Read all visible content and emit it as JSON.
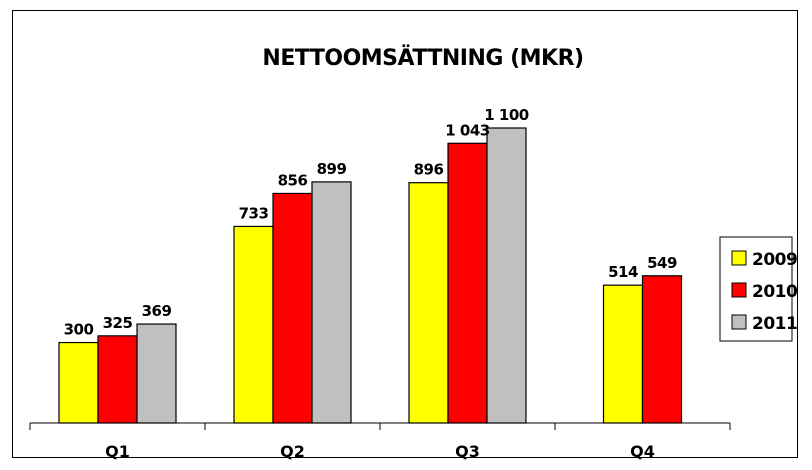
{
  "chart_data": {
    "type": "bar",
    "title": "NETTOOMSÄTTNING (MKR)",
    "categories": [
      "Q1",
      "Q2",
      "Q3",
      "Q4"
    ],
    "series": [
      {
        "name": "2009",
        "color": "#FFFF00",
        "values": [
          300,
          733,
          896,
          514
        ],
        "labels": [
          "300",
          "733",
          "896",
          "514"
        ]
      },
      {
        "name": "2010",
        "color": "#FF0000",
        "values": [
          325,
          856,
          1043,
          549
        ],
        "labels": [
          "325",
          "856",
          "1 043",
          "549"
        ]
      },
      {
        "name": "2011",
        "color": "#C0C0C0",
        "values": [
          369,
          899,
          1100,
          null
        ],
        "labels": [
          "369",
          "899",
          "1 100",
          ""
        ]
      }
    ],
    "ylim": [
      0,
      1100
    ],
    "grid": false,
    "legend": "right"
  }
}
